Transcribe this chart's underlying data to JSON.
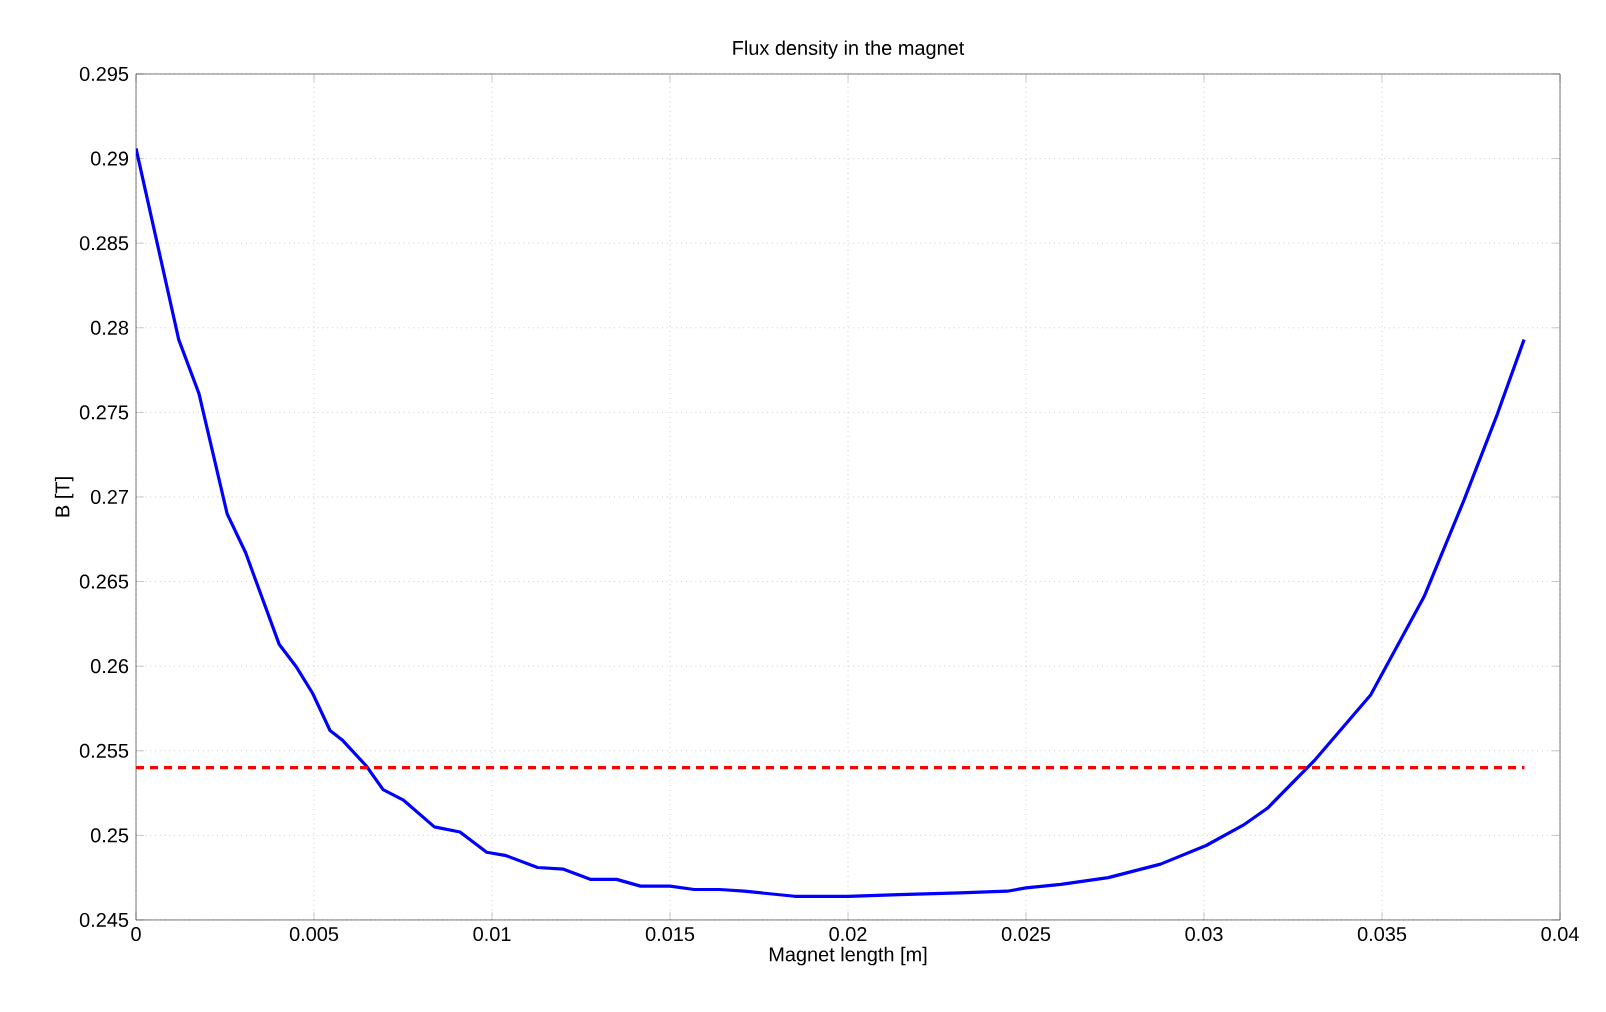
{
  "chart_data": {
    "type": "line",
    "title": "Flux density in the magnet",
    "xlabel": "Magnet length [m]",
    "ylabel": "B [T]",
    "xlim": [
      0,
      0.04
    ],
    "ylim": [
      0.245,
      0.295
    ],
    "xticks": [
      0,
      0.005,
      0.01,
      0.015,
      0.02,
      0.025,
      0.03,
      0.035,
      0.04
    ],
    "yticks": [
      0.245,
      0.25,
      0.255,
      0.26,
      0.265,
      0.27,
      0.275,
      0.28,
      0.285,
      0.29,
      0.295
    ],
    "grid": true,
    "marker": "none",
    "series": [
      {
        "color": "#0000ff",
        "line_style": "solid",
        "x": [
          0,
          0.0012,
          0.00177,
          0.00256,
          0.00308,
          0.00402,
          0.00449,
          0.00496,
          0.00545,
          0.00581,
          0.00647,
          0.00694,
          0.0075,
          0.00838,
          0.0091,
          0.00985,
          0.0104,
          0.01128,
          0.01201,
          0.01276,
          0.0135,
          0.01417,
          0.015,
          0.01568,
          0.0164,
          0.01708,
          0.0185,
          0.02,
          0.02144,
          0.02314,
          0.02447,
          0.025,
          0.02598,
          0.02731,
          0.02878,
          0.03006,
          0.0311,
          0.03178,
          0.03309,
          0.03468,
          0.03618,
          0.0373,
          0.03824,
          0.03899
        ],
        "values": [
          0.2906,
          0.2793,
          0.2761,
          0.269,
          0.2667,
          0.2613,
          0.26,
          0.2584,
          0.2562,
          0.2556,
          0.2541,
          0.2527,
          0.2521,
          0.2505,
          0.2502,
          0.249,
          0.2488,
          0.2481,
          0.248,
          0.2474,
          0.2474,
          0.247,
          0.247,
          0.2468,
          0.2468,
          0.2467,
          0.2464,
          0.2464,
          0.2465,
          0.2466,
          0.2467,
          0.2469,
          0.2471,
          0.2475,
          0.2483,
          0.2494,
          0.2506,
          0.2516,
          0.2544,
          0.2583,
          0.2641,
          0.2698,
          0.2749,
          0.2793
        ]
      },
      {
        "color": "#ff0000",
        "line_style": "dashed",
        "x": [
          0,
          0.039
        ],
        "values": [
          0.254,
          0.254
        ]
      }
    ]
  }
}
